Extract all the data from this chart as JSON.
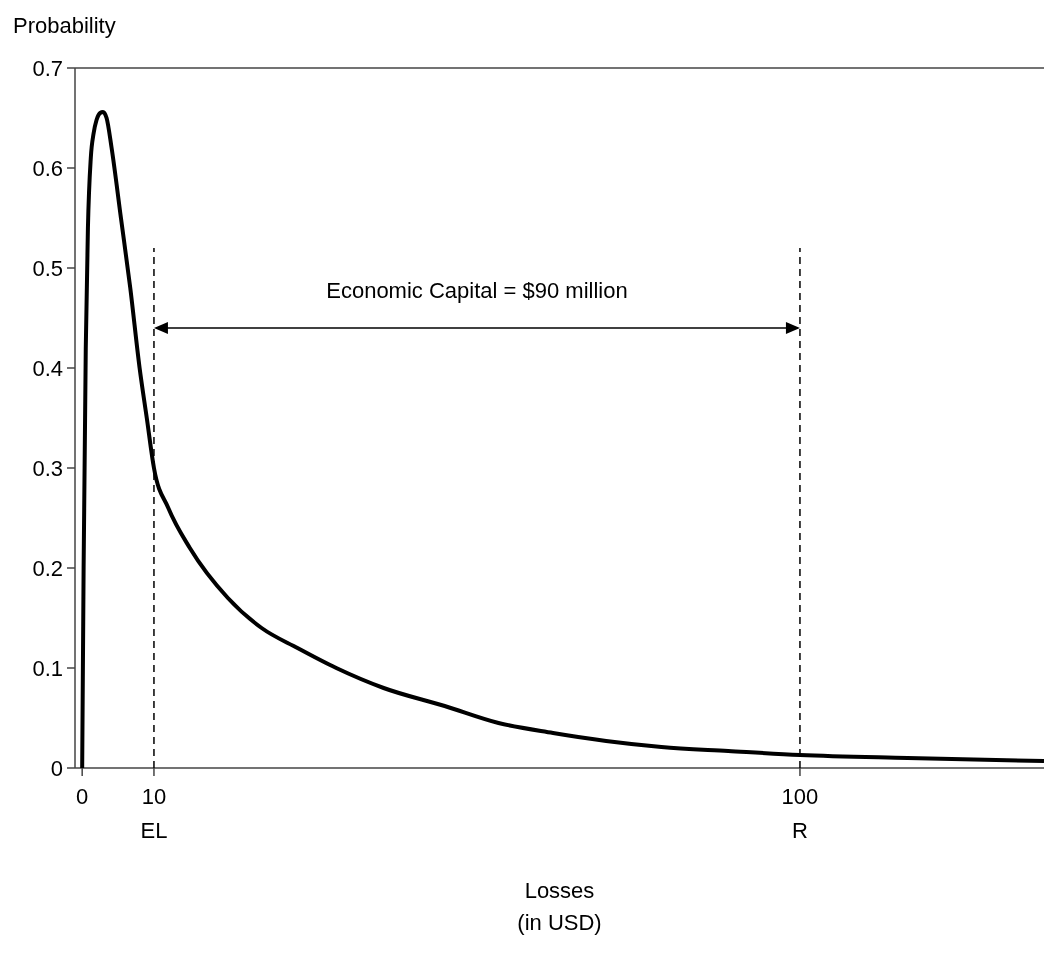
{
  "chart_data": {
    "type": "line",
    "xlabel": "Losses\n(in USD)",
    "ylabel": "Probability",
    "xlim": [
      -1,
      134
    ],
    "xticks": [
      0,
      10,
      100
    ],
    "ylim": [
      0,
      0.7
    ],
    "yticks": [
      0,
      0.1,
      0.2,
      0.3,
      0.4,
      0.5,
      0.6,
      0.7
    ],
    "grid": false,
    "marker": "none",
    "line_style": "solid",
    "series": [
      {
        "color": "#000000",
        "x": [
          0,
          0.2,
          0.5,
          0.8,
          1.2,
          1.6,
          2.0,
          2.5,
          2.9,
          3.4,
          4.1,
          5.4,
          6.7,
          8.0,
          9.0,
          10,
          12,
          15,
          20.3,
          25,
          30,
          35.4,
          42,
          50.5,
          58,
          65.6,
          73,
          80.7,
          90,
          100,
          115,
          134
        ],
        "values": [
          0,
          0.2,
          0.42,
          0.54,
          0.61,
          0.635,
          0.648,
          0.655,
          0.656,
          0.65,
          0.62,
          0.55,
          0.48,
          0.4,
          0.35,
          0.3,
          0.26,
          0.22,
          0.17,
          0.14,
          0.12,
          0.1,
          0.08,
          0.062,
          0.045,
          0.035,
          0.027,
          0.021,
          0.017,
          0.013,
          0.01,
          0.007
        ]
      }
    ],
    "ref_lines": [
      {
        "axis": "x",
        "value": 10,
        "label": "EL",
        "line_style": "dashed",
        "color": "#000000"
      },
      {
        "axis": "x",
        "value": 100,
        "label": "R",
        "line_style": "dashed",
        "color": "#000000"
      }
    ],
    "annotations": [
      "Economic Capital = $90 million"
    ]
  }
}
